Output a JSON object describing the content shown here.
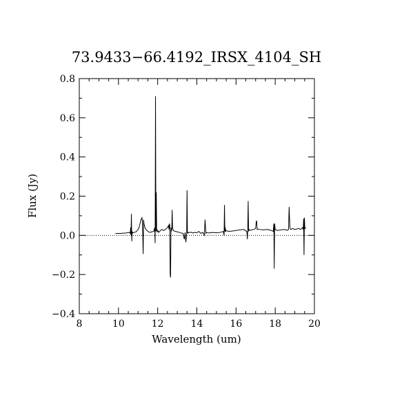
{
  "chart_data": {
    "type": "line",
    "title": "73.9433−66.4192_IRSX_4104_SH",
    "xlabel": "Wavelength (um)",
    "ylabel": "Flux (Jy)",
    "xlim": [
      8,
      20
    ],
    "ylim": [
      -0.4,
      0.8
    ],
    "x_ticks": [
      8,
      10,
      12,
      14,
      16,
      18,
      20
    ],
    "x_tick_labels": [
      "8",
      "10",
      "12",
      "14",
      "16",
      "18",
      "20"
    ],
    "y_ticks": [
      -0.4,
      -0.2,
      0.0,
      0.2,
      0.4,
      0.6,
      0.8
    ],
    "y_tick_labels": [
      "−0.4",
      "−0.2",
      "0.0",
      "0.2",
      "0.4",
      "0.6",
      "0.8"
    ],
    "grid": false,
    "reference_line": {
      "y": 0.0,
      "style": "dotted"
    },
    "series": [
      {
        "color": "#000000",
        "x": [
          9.85,
          10.1,
          10.4,
          10.55,
          10.6,
          10.62,
          10.64,
          10.66,
          10.68,
          10.7,
          10.72,
          10.74,
          10.8,
          10.9,
          11.0,
          11.05,
          11.1,
          11.15,
          11.2,
          11.22,
          11.24,
          11.26,
          11.28,
          11.3,
          11.35,
          11.4,
          11.5,
          11.6,
          11.7,
          11.8,
          11.85,
          11.87,
          11.89,
          11.91,
          11.93,
          11.95,
          11.97,
          11.99,
          12.01,
          12.03,
          12.05,
          12.1,
          12.2,
          12.3,
          12.4,
          12.5,
          12.55,
          12.58,
          12.6,
          12.62,
          12.64,
          12.66,
          12.68,
          12.7,
          12.72,
          12.74,
          12.76,
          12.78,
          12.8,
          12.85,
          12.9,
          13.0,
          13.1,
          13.2,
          13.3,
          13.36,
          13.4,
          13.44,
          13.48,
          13.5,
          13.52,
          13.54,
          13.56,
          13.6,
          13.7,
          13.8,
          13.9,
          14.0,
          14.1,
          14.2,
          14.3,
          14.38,
          14.42,
          14.46,
          14.5,
          14.6,
          14.8,
          15.0,
          15.2,
          15.35,
          15.39,
          15.41,
          15.43,
          15.45,
          15.47,
          15.5,
          15.6,
          15.8,
          16.0,
          16.2,
          16.4,
          16.55,
          16.58,
          16.6,
          16.62,
          16.64,
          16.66,
          16.7,
          16.8,
          16.9,
          17.0,
          17.03,
          17.05,
          17.08,
          17.1,
          17.2,
          17.4,
          17.6,
          17.8,
          17.9,
          17.93,
          17.95,
          17.97,
          18.0,
          18.1,
          18.3,
          18.5,
          18.6,
          18.68,
          18.71,
          18.73,
          18.75,
          18.8,
          18.9,
          19.0,
          19.2,
          19.3,
          19.4,
          19.43,
          19.45,
          19.47,
          19.49,
          19.51,
          19.53,
          19.55
        ],
        "y": [
          0.01,
          0.01,
          0.012,
          0.015,
          0.01,
          0.04,
          0.0,
          0.11,
          -0.03,
          0.02,
          0.015,
          0.012,
          0.015,
          0.018,
          0.03,
          0.04,
          0.06,
          0.08,
          0.09,
          0.07,
          0.0,
          -0.095,
          0.08,
          0.06,
          0.04,
          0.03,
          0.02,
          0.015,
          0.018,
          0.02,
          0.04,
          -0.04,
          0.71,
          0.02,
          0.22,
          0.02,
          0.03,
          0.02,
          0.018,
          0.022,
          0.015,
          0.02,
          0.03,
          0.025,
          0.03,
          0.04,
          0.05,
          0.03,
          0.06,
          0.05,
          -0.2,
          -0.215,
          0.04,
          0.02,
          0.03,
          0.13,
          0.04,
          0.03,
          0.025,
          0.022,
          0.02,
          0.018,
          0.015,
          0.012,
          0.01,
          -0.02,
          0.015,
          -0.035,
          0.01,
          0.23,
          0.01,
          0.015,
          0.012,
          0.014,
          0.016,
          0.012,
          0.015,
          0.013,
          0.02,
          0.01,
          0.015,
          0.0,
          0.08,
          0.01,
          0.015,
          0.012,
          0.015,
          0.013,
          0.015,
          0.02,
          0.0,
          0.155,
          0.02,
          0.04,
          0.02,
          0.025,
          0.02,
          0.022,
          0.025,
          0.028,
          0.03,
          0.02,
          -0.02,
          0.04,
          0.175,
          0.02,
          0.03,
          0.025,
          0.028,
          0.03,
          0.035,
          0.07,
          0.075,
          0.03,
          0.032,
          0.03,
          0.028,
          0.03,
          0.025,
          0.02,
          0.06,
          -0.17,
          0.06,
          0.03,
          0.025,
          0.028,
          0.03,
          0.025,
          0.03,
          0.145,
          0.09,
          0.04,
          0.03,
          0.035,
          0.03,
          0.035,
          0.03,
          0.04,
          0.03,
          0.085,
          -0.1,
          0.09,
          0.04,
          0.035,
          0.04
        ]
      }
    ]
  }
}
